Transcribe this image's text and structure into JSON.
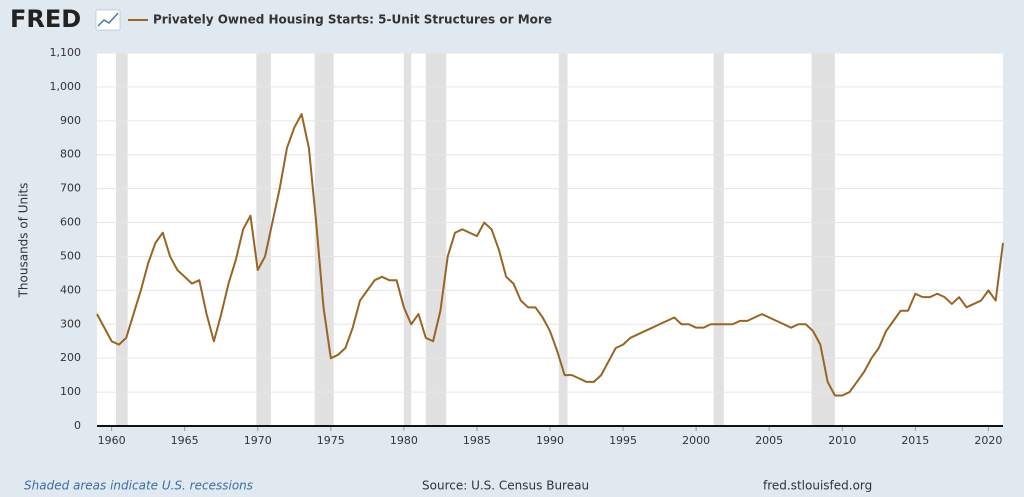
{
  "chart_data": {
    "type": "line",
    "logo": "FRED",
    "y_label": "Thousands of Units",
    "footer_note": "Shaded areas indicate U.S. recessions",
    "source": "Source: U.S. Census Bureau",
    "site": "fred.stlouisfed.org",
    "xlim": [
      1959,
      2021
    ],
    "xticks": [
      1960,
      1965,
      1970,
      1975,
      1980,
      1985,
      1990,
      1995,
      2000,
      2005,
      2010,
      2015,
      2020
    ],
    "ylim": [
      0,
      1100
    ],
    "yticks": [
      0,
      100,
      200,
      300,
      400,
      500,
      600,
      700,
      800,
      900,
      {
        "value": 1000,
        "label": "1,000"
      },
      {
        "value": 1100,
        "label": "1,100"
      }
    ],
    "grid": true,
    "recessions": [
      [
        1960.3,
        1961.1
      ],
      [
        1969.9,
        1970.9
      ],
      [
        1973.9,
        1975.2
      ],
      [
        1980.0,
        1980.5
      ],
      [
        1981.5,
        1982.9
      ],
      [
        1990.6,
        1991.2
      ],
      [
        2001.2,
        2001.9
      ],
      [
        2007.9,
        2009.5
      ]
    ],
    "x": [
      1959,
      1959.5,
      1960,
      1960.5,
      1961,
      1961.5,
      1962,
      1962.5,
      1963,
      1963.5,
      1964,
      1964.5,
      1965,
      1965.5,
      1966,
      1966.5,
      1967,
      1967.5,
      1968,
      1968.5,
      1969,
      1969.5,
      1970,
      1970.5,
      1971,
      1971.5,
      1972,
      1972.5,
      1973,
      1973.5,
      1974,
      1974.5,
      1975,
      1975.5,
      1976,
      1976.5,
      1977,
      1977.5,
      1978,
      1978.5,
      1979,
      1979.5,
      1980,
      1980.5,
      1981,
      1981.5,
      1982,
      1982.5,
      1983,
      1983.5,
      1984,
      1984.5,
      1985,
      1985.5,
      1986,
      1986.5,
      1987,
      1987.5,
      1988,
      1988.5,
      1989,
      1989.5,
      1990,
      1990.5,
      1991,
      1991.5,
      1992,
      1992.5,
      1993,
      1993.5,
      1994,
      1994.5,
      1995,
      1995.5,
      1996,
      1996.5,
      1997,
      1997.5,
      1998,
      1998.5,
      1999,
      1999.5,
      2000,
      2000.5,
      2001,
      2001.5,
      2002,
      2002.5,
      2003,
      2003.5,
      2004,
      2004.5,
      2005,
      2005.5,
      2006,
      2006.5,
      2007,
      2007.5,
      2008,
      2008.5,
      2009,
      2009.5,
      2010,
      2010.5,
      2011,
      2011.5,
      2012,
      2012.5,
      2013,
      2013.5,
      2014,
      2014.5,
      2015,
      2015.5,
      2016,
      2016.5,
      2017,
      2017.5,
      2018,
      2018.5,
      2019,
      2019.5,
      2020,
      2020.5,
      2021
    ],
    "series": [
      {
        "name": "Privately Owned Housing Starts: 5-Unit Structures or More",
        "color": "#9a6424",
        "values": [
          330,
          290,
          250,
          240,
          260,
          330,
          400,
          480,
          540,
          570,
          500,
          460,
          440,
          420,
          430,
          330,
          250,
          330,
          420,
          490,
          580,
          620,
          460,
          500,
          600,
          700,
          820,
          880,
          920,
          820,
          600,
          350,
          200,
          210,
          230,
          290,
          370,
          400,
          430,
          440,
          430,
          430,
          350,
          300,
          330,
          260,
          250,
          340,
          500,
          570,
          580,
          570,
          560,
          600,
          580,
          520,
          440,
          420,
          370,
          350,
          350,
          320,
          280,
          220,
          150,
          150,
          140,
          130,
          130,
          150,
          190,
          230,
          240,
          260,
          270,
          280,
          290,
          300,
          310,
          320,
          300,
          300,
          290,
          290,
          300,
          300,
          300,
          300,
          310,
          310,
          320,
          330,
          320,
          310,
          300,
          290,
          300,
          300,
          280,
          240,
          130,
          90,
          90,
          100,
          130,
          160,
          200,
          230,
          280,
          310,
          340,
          340,
          390,
          380,
          380,
          390,
          380,
          360,
          380,
          350,
          360,
          370,
          400,
          370,
          540
        ]
      }
    ]
  }
}
